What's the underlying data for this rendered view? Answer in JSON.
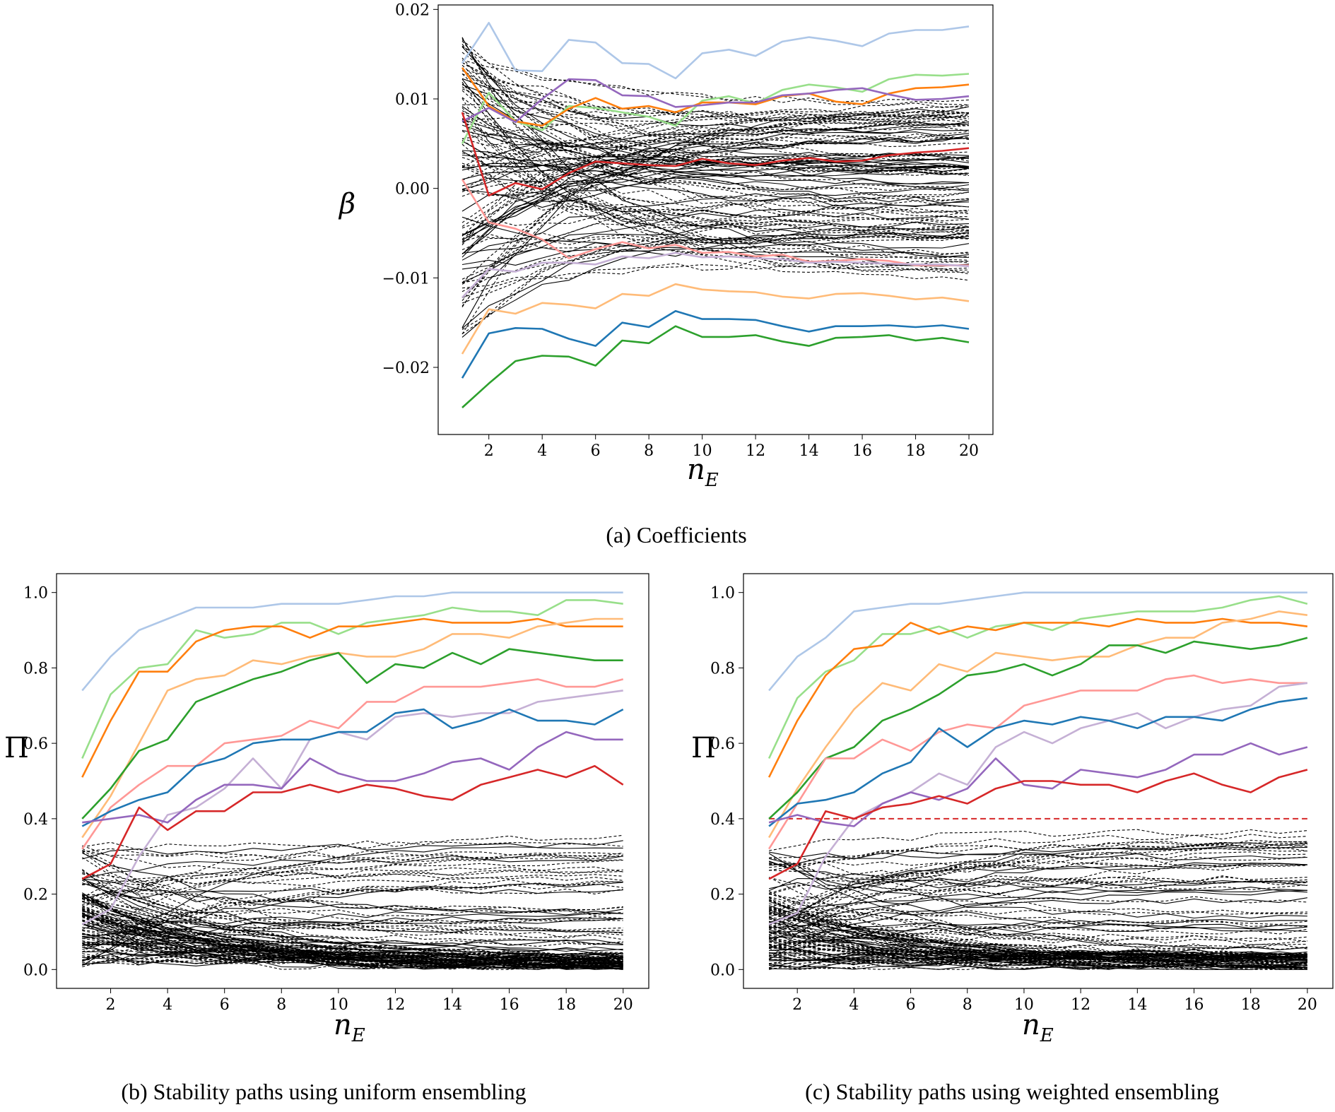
{
  "chart_data": [
    {
      "id": "a",
      "type": "line",
      "caption": "(a) Coefficients",
      "xlabel": "n",
      "xlabel_sub": "E",
      "ylabel": "β",
      "xlim": [
        0.1,
        20.9
      ],
      "ylim": [
        -0.0275,
        0.0205
      ],
      "xticks": [
        2,
        4,
        6,
        8,
        10,
        12,
        14,
        16,
        18,
        20
      ],
      "yticks": [
        0.02,
        0.01,
        0.0,
        -0.01,
        -0.02
      ],
      "ytick_labels": [
        "0.02",
        "0.01",
        "0.00",
        "−0.01",
        "−0.02"
      ],
      "x": [
        1,
        2,
        3,
        4,
        5,
        6,
        7,
        8,
        9,
        10,
        11,
        12,
        13,
        14,
        15,
        16,
        17,
        18,
        19,
        20
      ],
      "series": [
        {
          "name": "light-blue",
          "color": "#aec7e8",
          "values": [
            0.014,
            0.0185,
            0.0132,
            0.0131,
            0.0166,
            0.0163,
            0.014,
            0.0139,
            0.0123,
            0.0151,
            0.0155,
            0.0148,
            0.0164,
            0.0169,
            0.0165,
            0.0159,
            0.0173,
            0.0177,
            0.0177,
            0.0181
          ]
        },
        {
          "name": "light-green",
          "color": "#98df8a",
          "values": [
            0.005,
            0.0107,
            0.0075,
            0.0065,
            0.0092,
            0.009,
            0.0085,
            0.008,
            0.007,
            0.0098,
            0.0103,
            0.0095,
            0.011,
            0.0116,
            0.0113,
            0.0108,
            0.0122,
            0.0127,
            0.0126,
            0.0128
          ]
        },
        {
          "name": "orange",
          "color": "#ff7f0e",
          "values": [
            0.0135,
            0.0092,
            0.0075,
            0.007,
            0.0089,
            0.0101,
            0.0089,
            0.0092,
            0.0085,
            0.0096,
            0.0096,
            0.0094,
            0.0103,
            0.0106,
            0.0097,
            0.0094,
            0.0106,
            0.0112,
            0.0113,
            0.0116
          ]
        },
        {
          "name": "purple",
          "color": "#9467bd",
          "values": [
            0.0075,
            0.009,
            0.0074,
            0.01,
            0.0122,
            0.0121,
            0.0104,
            0.0103,
            0.0091,
            0.0093,
            0.0096,
            0.0096,
            0.0104,
            0.0106,
            0.011,
            0.0112,
            0.0105,
            0.0099,
            0.01,
            0.0103
          ]
        },
        {
          "name": "red",
          "color": "#d62728",
          "values": [
            0.0085,
            -0.0008,
            0.0006,
            -0.0001,
            0.0017,
            0.003,
            0.0028,
            0.0026,
            0.0025,
            0.0033,
            0.0028,
            0.0026,
            0.0031,
            0.0034,
            0.003,
            0.0031,
            0.0037,
            0.004,
            0.0042,
            0.0045
          ]
        },
        {
          "name": "pink",
          "color": "#ff9896",
          "values": [
            0.001,
            -0.0038,
            -0.0045,
            -0.0057,
            -0.0078,
            -0.0068,
            -0.006,
            -0.0067,
            -0.0063,
            -0.0072,
            -0.0071,
            -0.0076,
            -0.0074,
            -0.0082,
            -0.0081,
            -0.0079,
            -0.0081,
            -0.0086,
            -0.0086,
            -0.0086
          ]
        },
        {
          "name": "lavender",
          "color": "#c5b0d5",
          "values": [
            -0.0122,
            -0.009,
            -0.0093,
            -0.0083,
            -0.0083,
            -0.0085,
            -0.0076,
            -0.0078,
            -0.0072,
            -0.0077,
            -0.0076,
            -0.0078,
            -0.0079,
            -0.0083,
            -0.0082,
            -0.0083,
            -0.0084,
            -0.0085,
            -0.0085,
            -0.0087
          ]
        },
        {
          "name": "peach",
          "color": "#ffbb78",
          "values": [
            -0.0185,
            -0.0135,
            -0.014,
            -0.0128,
            -0.013,
            -0.0134,
            -0.0118,
            -0.012,
            -0.0107,
            -0.0113,
            -0.0115,
            -0.0116,
            -0.0121,
            -0.0123,
            -0.0118,
            -0.0117,
            -0.012,
            -0.0124,
            -0.0122,
            -0.0126
          ]
        },
        {
          "name": "blue",
          "color": "#1f77b4",
          "values": [
            -0.0212,
            -0.0162,
            -0.0156,
            -0.0157,
            -0.0168,
            -0.0176,
            -0.015,
            -0.0155,
            -0.0137,
            -0.0146,
            -0.0146,
            -0.0147,
            -0.0154,
            -0.016,
            -0.0154,
            -0.0154,
            -0.0153,
            -0.0155,
            -0.0153,
            -0.0157
          ]
        },
        {
          "name": "green",
          "color": "#2ca02c",
          "values": [
            -0.0245,
            -0.0218,
            -0.0193,
            -0.0187,
            -0.0188,
            -0.0198,
            -0.017,
            -0.0173,
            -0.0154,
            -0.0166,
            -0.0166,
            -0.0164,
            -0.0171,
            -0.0176,
            -0.0167,
            -0.0166,
            -0.0164,
            -0.017,
            -0.0167,
            -0.0172
          ]
        }
      ],
      "background_lines": {
        "color": "#000000",
        "style": "dashed",
        "count": 110,
        "seed": 11,
        "start_range": [
          -0.017,
          0.017
        ],
        "end_range": [
          -0.0105,
          0.0095
        ],
        "description": "unselected features"
      }
    },
    {
      "id": "b",
      "type": "line",
      "caption": "(b) Stability paths using uniform ensembling",
      "xlabel": "n",
      "xlabel_sub": "E",
      "ylabel": "Π",
      "xlim": [
        0.1,
        20.9
      ],
      "ylim": [
        -0.05,
        1.05
      ],
      "xticks": [
        2,
        4,
        6,
        8,
        10,
        12,
        14,
        16,
        18,
        20
      ],
      "yticks": [
        0.0,
        0.2,
        0.4,
        0.6,
        0.8,
        1.0
      ],
      "ytick_labels": [
        "0.0",
        "0.2",
        "0.4",
        "0.6",
        "0.8",
        "1.0"
      ],
      "x": [
        1,
        2,
        3,
        4,
        5,
        6,
        7,
        8,
        9,
        10,
        11,
        12,
        13,
        14,
        15,
        16,
        17,
        18,
        19,
        20
      ],
      "series": [
        {
          "name": "light-blue",
          "color": "#aec7e8",
          "values": [
            0.74,
            0.83,
            0.9,
            0.93,
            0.96,
            0.96,
            0.96,
            0.97,
            0.97,
            0.97,
            0.98,
            0.99,
            0.99,
            1.0,
            1.0,
            1.0,
            1.0,
            1.0,
            1.0,
            1.0
          ]
        },
        {
          "name": "light-green",
          "color": "#98df8a",
          "values": [
            0.56,
            0.73,
            0.8,
            0.81,
            0.9,
            0.88,
            0.89,
            0.92,
            0.92,
            0.89,
            0.92,
            0.93,
            0.94,
            0.96,
            0.95,
            0.95,
            0.94,
            0.98,
            0.98,
            0.97
          ]
        },
        {
          "name": "orange",
          "color": "#ff7f0e",
          "values": [
            0.51,
            0.66,
            0.79,
            0.79,
            0.87,
            0.9,
            0.91,
            0.91,
            0.88,
            0.91,
            0.91,
            0.92,
            0.93,
            0.92,
            0.92,
            0.92,
            0.93,
            0.91,
            0.91,
            0.91
          ]
        },
        {
          "name": "peach",
          "color": "#ffbb78",
          "values": [
            0.35,
            0.46,
            0.6,
            0.74,
            0.77,
            0.78,
            0.82,
            0.81,
            0.83,
            0.84,
            0.83,
            0.83,
            0.85,
            0.89,
            0.89,
            0.88,
            0.91,
            0.92,
            0.93,
            0.93
          ]
        },
        {
          "name": "green",
          "color": "#2ca02c",
          "values": [
            0.4,
            0.48,
            0.58,
            0.61,
            0.71,
            0.74,
            0.77,
            0.79,
            0.82,
            0.84,
            0.76,
            0.81,
            0.8,
            0.84,
            0.81,
            0.85,
            0.84,
            0.83,
            0.82,
            0.82
          ]
        },
        {
          "name": "pink",
          "color": "#ff9896",
          "values": [
            0.32,
            0.43,
            0.49,
            0.54,
            0.54,
            0.6,
            0.61,
            0.62,
            0.66,
            0.64,
            0.71,
            0.71,
            0.75,
            0.75,
            0.75,
            0.76,
            0.77,
            0.75,
            0.75,
            0.77
          ]
        },
        {
          "name": "lavender",
          "color": "#c5b0d5",
          "values": [
            0.12,
            0.16,
            0.3,
            0.41,
            0.43,
            0.48,
            0.56,
            0.48,
            0.61,
            0.63,
            0.61,
            0.67,
            0.68,
            0.67,
            0.68,
            0.68,
            0.71,
            0.72,
            0.73,
            0.74
          ]
        },
        {
          "name": "blue",
          "color": "#1f77b4",
          "values": [
            0.38,
            0.42,
            0.45,
            0.47,
            0.54,
            0.56,
            0.6,
            0.61,
            0.61,
            0.63,
            0.63,
            0.68,
            0.69,
            0.64,
            0.66,
            0.69,
            0.66,
            0.66,
            0.65,
            0.69
          ]
        },
        {
          "name": "purple",
          "color": "#9467bd",
          "values": [
            0.39,
            0.4,
            0.41,
            0.39,
            0.45,
            0.49,
            0.49,
            0.48,
            0.56,
            0.52,
            0.5,
            0.5,
            0.52,
            0.55,
            0.56,
            0.53,
            0.59,
            0.63,
            0.61,
            0.61
          ]
        },
        {
          "name": "red",
          "color": "#d62728",
          "values": [
            0.24,
            0.28,
            0.43,
            0.37,
            0.42,
            0.42,
            0.47,
            0.47,
            0.49,
            0.47,
            0.49,
            0.48,
            0.46,
            0.45,
            0.49,
            0.51,
            0.53,
            0.51,
            0.54,
            0.49
          ]
        }
      ],
      "background_lines": {
        "color": "#000000",
        "style": "dashed",
        "count": 120,
        "seed": 23,
        "start_range": [
          0.0,
          0.33
        ],
        "end_range": [
          0.0,
          0.36
        ],
        "description": "unselected features"
      }
    },
    {
      "id": "c",
      "type": "line",
      "caption": "(c) Stability paths using weighted ensembling",
      "xlabel": "n",
      "xlabel_sub": "E",
      "ylabel": "Π",
      "xlim": [
        0.1,
        20.9
      ],
      "ylim": [
        -0.05,
        1.05
      ],
      "xticks": [
        2,
        4,
        6,
        8,
        10,
        12,
        14,
        16,
        18,
        20
      ],
      "yticks": [
        0.0,
        0.2,
        0.4,
        0.6,
        0.8,
        1.0
      ],
      "ytick_labels": [
        "0.0",
        "0.2",
        "0.4",
        "0.6",
        "0.8",
        "1.0"
      ],
      "threshold": {
        "value": 0.4,
        "from_x": 1,
        "to_x": 20,
        "color": "#d62728",
        "style": "dashed"
      },
      "x": [
        1,
        2,
        3,
        4,
        5,
        6,
        7,
        8,
        9,
        10,
        11,
        12,
        13,
        14,
        15,
        16,
        17,
        18,
        19,
        20
      ],
      "series": [
        {
          "name": "light-blue",
          "color": "#aec7e8",
          "values": [
            0.74,
            0.83,
            0.88,
            0.95,
            0.96,
            0.97,
            0.97,
            0.98,
            0.99,
            1.0,
            1.0,
            1.0,
            1.0,
            1.0,
            1.0,
            1.0,
            1.0,
            1.0,
            1.0,
            1.0
          ]
        },
        {
          "name": "light-green",
          "color": "#98df8a",
          "values": [
            0.56,
            0.72,
            0.79,
            0.82,
            0.89,
            0.89,
            0.91,
            0.88,
            0.91,
            0.92,
            0.9,
            0.93,
            0.94,
            0.95,
            0.95,
            0.95,
            0.96,
            0.98,
            0.99,
            0.97
          ]
        },
        {
          "name": "orange",
          "color": "#ff7f0e",
          "values": [
            0.51,
            0.66,
            0.78,
            0.85,
            0.86,
            0.92,
            0.89,
            0.91,
            0.9,
            0.92,
            0.92,
            0.92,
            0.91,
            0.93,
            0.92,
            0.92,
            0.93,
            0.92,
            0.92,
            0.91
          ]
        },
        {
          "name": "peach",
          "color": "#ffbb78",
          "values": [
            0.35,
            0.48,
            0.59,
            0.69,
            0.76,
            0.74,
            0.81,
            0.79,
            0.84,
            0.83,
            0.82,
            0.83,
            0.83,
            0.86,
            0.88,
            0.88,
            0.92,
            0.93,
            0.95,
            0.94
          ]
        },
        {
          "name": "green",
          "color": "#2ca02c",
          "values": [
            0.4,
            0.47,
            0.56,
            0.59,
            0.66,
            0.69,
            0.73,
            0.78,
            0.79,
            0.81,
            0.78,
            0.81,
            0.86,
            0.86,
            0.84,
            0.87,
            0.86,
            0.85,
            0.86,
            0.88
          ]
        },
        {
          "name": "pink",
          "color": "#ff9896",
          "values": [
            0.32,
            0.44,
            0.56,
            0.56,
            0.61,
            0.58,
            0.63,
            0.65,
            0.64,
            0.7,
            0.72,
            0.74,
            0.74,
            0.74,
            0.77,
            0.78,
            0.76,
            0.77,
            0.76,
            0.76
          ]
        },
        {
          "name": "lavender",
          "color": "#c5b0d5",
          "values": [
            0.12,
            0.15,
            0.3,
            0.4,
            0.44,
            0.47,
            0.52,
            0.49,
            0.59,
            0.63,
            0.6,
            0.64,
            0.66,
            0.68,
            0.64,
            0.67,
            0.69,
            0.7,
            0.75,
            0.76
          ]
        },
        {
          "name": "blue",
          "color": "#1f77b4",
          "values": [
            0.38,
            0.44,
            0.45,
            0.47,
            0.52,
            0.55,
            0.64,
            0.59,
            0.64,
            0.66,
            0.65,
            0.67,
            0.66,
            0.64,
            0.67,
            0.67,
            0.66,
            0.69,
            0.71,
            0.72
          ]
        },
        {
          "name": "purple",
          "color": "#9467bd",
          "values": [
            0.39,
            0.41,
            0.39,
            0.38,
            0.44,
            0.47,
            0.45,
            0.48,
            0.56,
            0.49,
            0.48,
            0.53,
            0.52,
            0.51,
            0.53,
            0.57,
            0.57,
            0.6,
            0.57,
            0.59
          ]
        },
        {
          "name": "red",
          "color": "#d62728",
          "values": [
            0.24,
            0.28,
            0.42,
            0.4,
            0.43,
            0.44,
            0.46,
            0.44,
            0.48,
            0.5,
            0.5,
            0.49,
            0.49,
            0.47,
            0.5,
            0.52,
            0.49,
            0.47,
            0.51,
            0.53
          ]
        }
      ],
      "background_lines": {
        "color": "#000000",
        "style": "dashed",
        "count": 120,
        "seed": 37,
        "start_range": [
          0.0,
          0.33
        ],
        "end_range": [
          0.0,
          0.37
        ],
        "description": "unselected features"
      }
    }
  ]
}
